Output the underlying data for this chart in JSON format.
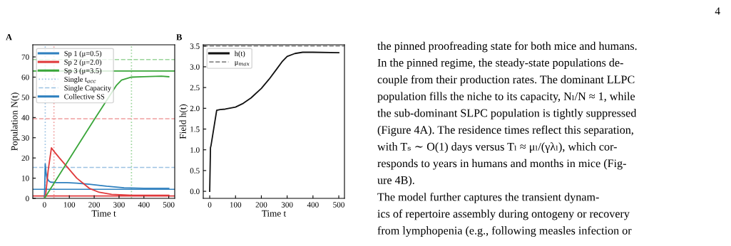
{
  "chart_data": [
    {
      "type": "line",
      "title": "A",
      "xlabel": "Time t",
      "ylabel": "Population N(t)",
      "xlim": [
        -47,
        524
      ],
      "xticks": [
        0,
        100,
        200,
        300,
        400,
        500
      ],
      "ylim": [
        0,
        76
      ],
      "yticks": [
        0,
        10,
        20,
        30,
        40,
        50,
        60,
        70
      ],
      "legend": "top left",
      "grid": false,
      "line_style": "solid",
      "marker": "none",
      "series": [
        {
          "name": "Sp 1 (μ=0.5)",
          "color": "#2f80bf",
          "x": [
            0,
            3,
            6,
            10,
            18,
            25,
            50,
            90,
            130,
            180,
            250,
            320,
            400,
            500
          ],
          "values": [
            0,
            17,
            13,
            10,
            8.5,
            8,
            7.8,
            7.8,
            7.5,
            7,
            6,
            5.2,
            5,
            5
          ]
        },
        {
          "name": "Sp 2 (μ=2.0)",
          "color": "#e03a3c",
          "x": [
            0,
            5,
            15,
            28,
            40,
            60,
            95,
            130,
            180,
            220,
            270,
            350,
            500
          ],
          "values": [
            0,
            2,
            14,
            25,
            23,
            20,
            15,
            10,
            5,
            3,
            2,
            1.5,
            1.5
          ]
        },
        {
          "name": "Sp 3 (μ=3.5)",
          "color": "#3aa63a",
          "x": [
            0,
            100,
            200,
            290,
            310,
            350,
            400,
            470,
            500
          ],
          "values": [
            0,
            19.5,
            39,
            56,
            58.5,
            60,
            60.2,
            60.5,
            60.2
          ]
        }
      ],
      "ref_lines": [
        {
          "axis": "x",
          "value": 3,
          "color": "#9cc2e2",
          "line_style": "dotted",
          "label": "Single t$_{acc}$"
        },
        {
          "axis": "x",
          "value": 38,
          "color": "#f0a0a0",
          "line_style": "dotted"
        },
        {
          "axis": "x",
          "value": 350,
          "color": "#9ad49a",
          "line_style": "dotted"
        },
        {
          "axis": "y",
          "value": 15.3,
          "color": "#9cc2e2",
          "line_style": "dashed",
          "label": "Single Capacity"
        },
        {
          "axis": "y",
          "value": 39.4,
          "color": "#f0a0a0",
          "line_style": "dashed"
        },
        {
          "axis": "y",
          "value": 68.7,
          "color": "#9ad49a",
          "line_style": "dashed"
        },
        {
          "axis": "y",
          "value": 4.5,
          "color": "#2f80bf",
          "line_style": "solid",
          "label": "Collective SS"
        },
        {
          "axis": "y",
          "value": 1.2,
          "color": "#e03a3c",
          "line_style": "solid"
        },
        {
          "axis": "y",
          "value": 63,
          "color": "#3aa63a",
          "line_style": "solid"
        }
      ]
    },
    {
      "type": "line",
      "title": "B",
      "xlabel": "Time t",
      "ylabel": "Field h(t)",
      "xlim": [
        -25,
        522
      ],
      "xticks": [
        0,
        100,
        200,
        300,
        400,
        500
      ],
      "ylim": [
        -0.17,
        3.53
      ],
      "yticks": [
        {
          "value": 0,
          "label": "0.0"
        },
        0.5,
        {
          "value": 1,
          "label": "1.0"
        },
        1.5,
        {
          "value": 2,
          "label": "2.0"
        },
        2.5,
        {
          "value": 3,
          "label": "3.0"
        },
        3.5
      ],
      "legend": "top left",
      "grid": false,
      "line_style": "solid",
      "marker": "none",
      "series": [
        {
          "name": "h(t)",
          "color": "#111111",
          "x": [
            0,
            3,
            5,
            27,
            40,
            60,
            100,
            130,
            160,
            200,
            230,
            260,
            280,
            300,
            330,
            360,
            400,
            500
          ],
          "values": [
            0,
            1.05,
            1.1,
            1.95,
            1.97,
            1.98,
            2.03,
            2.12,
            2.25,
            2.48,
            2.7,
            2.95,
            3.12,
            3.25,
            3.32,
            3.35,
            3.35,
            3.34
          ]
        }
      ],
      "ref_lines": [
        {
          "axis": "y",
          "value": 3.5,
          "color": "#888888",
          "line_style": "dashed",
          "label": "μ$_{max}$"
        }
      ]
    },
    {
      "type": "other",
      "annotations": [
        "4",
        "the pinned proofreading state for both mice and humans.",
        "In the pinned regime, the steady-state populations de-",
        "couple from their production rates. The dominant LLPC",
        "population fills the niche to its capacity, Nₗ/N ≈ 1, while",
        "the sub-dominant SLPC population is tightly suppressed",
        "(Figure 4A). The residence times reflect this separation,",
        "with Tₛ ∼ O(1) days versus Tₗ ≈ μₗ/(γλₗ), which cor-",
        "responds to years in humans and months in mice (Fig-",
        "ure 4B).",
        "The model further captures the transient dynam-",
        "ics of repertoire assembly during ontogeny or recovery",
        "from lymphopenia (e.g., following measles infection or"
      ]
    }
  ]
}
